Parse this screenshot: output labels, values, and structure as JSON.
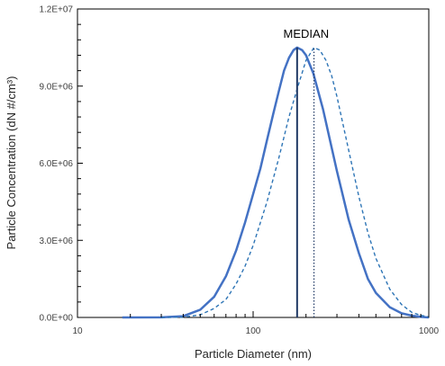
{
  "chart_data": {
    "type": "line",
    "xlabel": "Particle Diameter (nm)",
    "ylabel": "Particle Concentration (dN #/cm³)",
    "x_scale": "log",
    "xlim": [
      10,
      1000
    ],
    "ylim": [
      0,
      12000000
    ],
    "x_ticks": [
      10,
      100,
      1000
    ],
    "x_tick_labels": [
      "10",
      "100",
      "1000"
    ],
    "y_ticks": [
      0,
      3000000,
      6000000,
      9000000,
      12000000
    ],
    "y_tick_labels": [
      "0.0E+00",
      "3.0E+06",
      "6.0E+06",
      "9.0E+06",
      "1.2E+07"
    ],
    "grid": false,
    "legend": "none",
    "annotation": "MEDIAN",
    "series": [
      {
        "style": "solid",
        "color": "#4472C4",
        "x": [
          18,
          30,
          40,
          50,
          60,
          70,
          80,
          90,
          100,
          110,
          120,
          130,
          140,
          150,
          160,
          170,
          178,
          190,
          200,
          220,
          250,
          280,
          300,
          350,
          400,
          450,
          500,
          600,
          700,
          800,
          900,
          1000
        ],
        "values": [
          0,
          5000,
          50000,
          300000,
          800000,
          1600000,
          2600000,
          3700000,
          4800000,
          5800000,
          6900000,
          7900000,
          8800000,
          9600000,
          10100000,
          10400000,
          10500000,
          10400000,
          10200000,
          9500000,
          8100000,
          6600000,
          5700000,
          3800000,
          2500000,
          1500000,
          950000,
          400000,
          160000,
          70000,
          20000,
          0
        ]
      },
      {
        "style": "dashed",
        "color": "#2E75B6",
        "x": [
          30,
          40,
          50,
          60,
          70,
          80,
          90,
          100,
          120,
          140,
          160,
          180,
          200,
          222,
          240,
          260,
          280,
          300,
          350,
          400,
          450,
          500,
          600,
          700,
          800,
          900,
          1000
        ],
        "values": [
          0,
          10000,
          100000,
          350000,
          700000,
          1300000,
          2000000,
          2800000,
          4500000,
          6200000,
          7800000,
          9000000,
          10000000,
          10500000,
          10400000,
          10000000,
          9400000,
          8600000,
          6500000,
          4700000,
          3300000,
          2300000,
          1100000,
          500000,
          200000,
          80000,
          20000
        ]
      }
    ],
    "median_lines": [
      {
        "x": 178,
        "style": "solid",
        "color": "#1F3864"
      },
      {
        "x": 222,
        "style": "dotted",
        "color": "#1F3864"
      }
    ]
  }
}
